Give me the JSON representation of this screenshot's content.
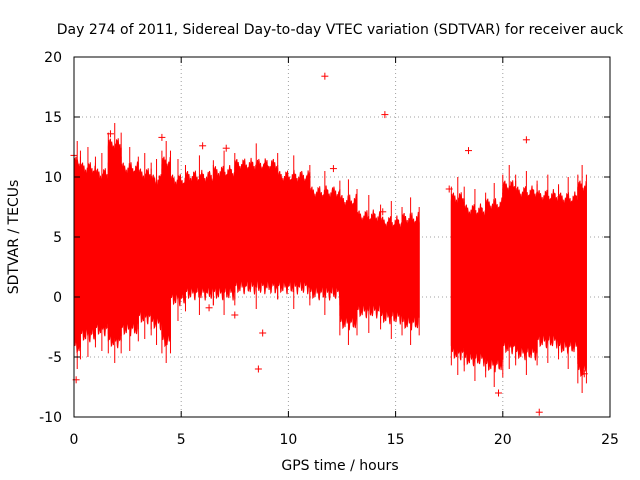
{
  "chart_data": {
    "type": "scatter",
    "title": "Day 274 of 2011, Sidereal Day-to-day VTEC variation (SDTVAR) for receiver auck",
    "xlabel": "GPS time / hours",
    "ylabel": "SDTVAR / TECUs",
    "xlim": [
      0,
      25
    ],
    "ylim": [
      -10,
      20
    ],
    "xticks": [
      "0",
      "5",
      "10",
      "15",
      "20",
      "25"
    ],
    "yticks": [
      "-10",
      "-5",
      "0",
      "5",
      "10",
      "15",
      "20"
    ],
    "grid": true,
    "marker": "+",
    "color": "#ff0000",
    "bands": [
      {
        "x0": 0.0,
        "x1": 0.3,
        "lo": -4.0,
        "hi": 11.0
      },
      {
        "x0": 0.3,
        "x1": 1.0,
        "lo": -3.0,
        "hi": 10.5
      },
      {
        "x0": 1.0,
        "x1": 1.6,
        "lo": -2.5,
        "hi": 10.0
      },
      {
        "x0": 1.6,
        "x1": 2.2,
        "lo": -3.5,
        "hi": 12.5
      },
      {
        "x0": 2.2,
        "x1": 3.0,
        "lo": -2.5,
        "hi": 10.5
      },
      {
        "x0": 3.0,
        "x1": 3.6,
        "lo": -1.5,
        "hi": 10.0
      },
      {
        "x0": 3.6,
        "x1": 4.1,
        "lo": -2.0,
        "hi": 9.5
      },
      {
        "x0": 4.1,
        "x1": 4.5,
        "lo": -3.5,
        "hi": 11.0
      },
      {
        "x0": 4.5,
        "x1": 5.2,
        "lo": 0.0,
        "hi": 9.5
      },
      {
        "x0": 5.2,
        "x1": 6.5,
        "lo": 0.5,
        "hi": 9.8
      },
      {
        "x0": 6.5,
        "x1": 7.5,
        "lo": 0.5,
        "hi": 10.2
      },
      {
        "x0": 7.5,
        "x1": 9.5,
        "lo": 1.0,
        "hi": 10.8
      },
      {
        "x0": 9.5,
        "x1": 11.0,
        "lo": 1.0,
        "hi": 9.8
      },
      {
        "x0": 11.0,
        "x1": 12.4,
        "lo": 0.5,
        "hi": 8.5
      },
      {
        "x0": 12.4,
        "x1": 13.2,
        "lo": -2.0,
        "hi": 7.8
      },
      {
        "x0": 13.2,
        "x1": 14.3,
        "lo": -1.0,
        "hi": 6.5
      },
      {
        "x0": 14.3,
        "x1": 15.3,
        "lo": -1.5,
        "hi": 6.0
      },
      {
        "x0": 15.3,
        "x1": 16.1,
        "lo": -2.0,
        "hi": 6.3
      },
      {
        "x0": 17.6,
        "x1": 18.2,
        "lo": -4.5,
        "hi": 8.0
      },
      {
        "x0": 18.2,
        "x1": 19.2,
        "lo": -5.0,
        "hi": 7.0
      },
      {
        "x0": 19.2,
        "x1": 20.0,
        "lo": -5.5,
        "hi": 7.5
      },
      {
        "x0": 20.0,
        "x1": 20.6,
        "lo": -4.0,
        "hi": 9.0
      },
      {
        "x0": 20.6,
        "x1": 21.6,
        "lo": -4.5,
        "hi": 8.5
      },
      {
        "x0": 21.6,
        "x1": 22.6,
        "lo": -3.5,
        "hi": 8.2
      },
      {
        "x0": 22.6,
        "x1": 23.5,
        "lo": -4.0,
        "hi": 8.0
      },
      {
        "x0": 23.5,
        "x1": 23.9,
        "lo": -6.0,
        "hi": 9.0
      }
    ],
    "outliers": [
      {
        "x": 11.7,
        "y": 18.4
      },
      {
        "x": 14.5,
        "y": 15.2
      },
      {
        "x": 4.1,
        "y": 13.3
      },
      {
        "x": 1.7,
        "y": 13.6
      },
      {
        "x": 6.0,
        "y": 12.6
      },
      {
        "x": 7.1,
        "y": 12.4
      },
      {
        "x": 12.1,
        "y": 10.7
      },
      {
        "x": 21.1,
        "y": 13.1
      },
      {
        "x": 18.4,
        "y": 12.2
      },
      {
        "x": 0.0,
        "y": 11.8
      },
      {
        "x": 17.5,
        "y": 9.0
      },
      {
        "x": 14.4,
        "y": 7.1
      },
      {
        "x": 12.4,
        "y": 7.8
      },
      {
        "x": 6.3,
        "y": -0.9
      },
      {
        "x": 7.5,
        "y": -1.5
      },
      {
        "x": 8.8,
        "y": -3.0
      },
      {
        "x": 8.6,
        "y": -6.0
      },
      {
        "x": 0.1,
        "y": -6.9
      },
      {
        "x": 19.8,
        "y": -8.0
      },
      {
        "x": 21.7,
        "y": -9.6
      },
      {
        "x": 23.8,
        "y": -6.4
      }
    ]
  }
}
